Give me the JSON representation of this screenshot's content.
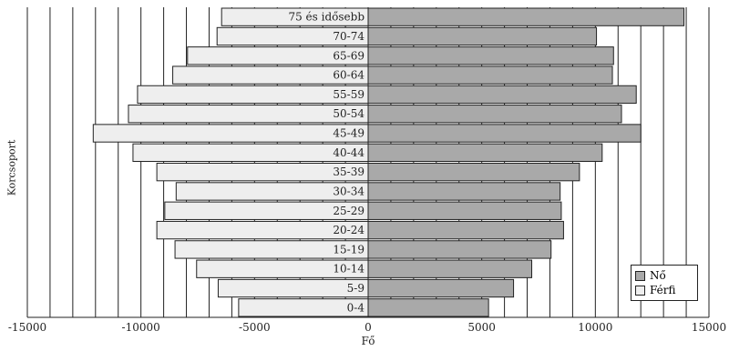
{
  "chart_data": {
    "type": "bar",
    "orientation": "horizontal",
    "title": "",
    "xlabel": "Fő",
    "ylabel": "Korcsoport",
    "xlim": [
      -15000,
      15000
    ],
    "xticks": [
      -15000,
      -10000,
      -5000,
      0,
      5000,
      10000,
      15000
    ],
    "grid": true,
    "legend_position": "bottom-right",
    "categories": [
      "75 és idősebb",
      "70-74",
      "65-69",
      "60-64",
      "55-59",
      "50-54",
      "45-49",
      "40-44",
      "35-39",
      "30-34",
      "25-29",
      "20-24",
      "15-19",
      "10-14",
      "5-9",
      "0-4"
    ],
    "series": [
      {
        "name": "Nő",
        "color": "#a9a9a9",
        "values": [
          13900,
          10050,
          10800,
          10750,
          11800,
          11150,
          12000,
          10300,
          9300,
          8450,
          8500,
          8600,
          8050,
          7200,
          6400,
          5300
        ]
      },
      {
        "name": "Férfi",
        "color": "#eeeeee",
        "values": [
          -6450,
          -6650,
          -7950,
          -8600,
          -10150,
          -10550,
          -12100,
          -10350,
          -9300,
          -8450,
          -8950,
          -9300,
          -8500,
          -7550,
          -6600,
          -5700
        ]
      }
    ]
  }
}
